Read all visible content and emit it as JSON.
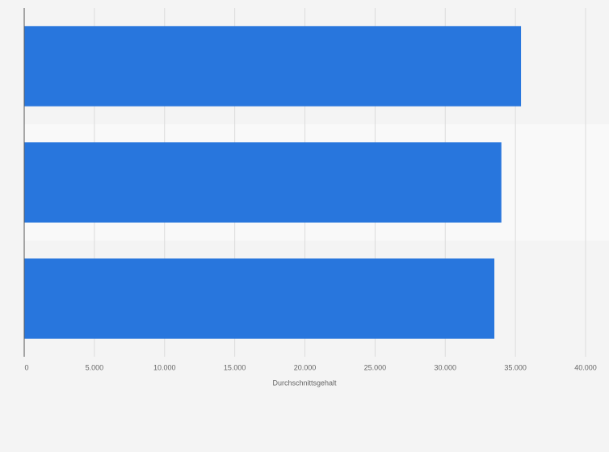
{
  "chart_data": {
    "type": "barh",
    "categories": [
      null,
      null,
      null
    ],
    "values": [
      35400,
      34000,
      33500
    ],
    "color": "#2876dd",
    "xlabel": "Durchschnittsgehalt",
    "xlim": [
      0,
      40000
    ],
    "xticks": [
      0,
      {
        "value": 5000,
        "label": "5.000"
      },
      {
        "value": 10000,
        "label": "10.000"
      },
      {
        "value": 15000,
        "label": "15.000"
      },
      {
        "value": 20000,
        "label": "20.000"
      },
      {
        "value": 25000,
        "label": "25.000"
      },
      {
        "value": 30000,
        "label": "30.000"
      },
      {
        "value": 35000,
        "label": "35.000"
      },
      {
        "value": 40000,
        "label": "40.000"
      }
    ],
    "grid": true
  }
}
